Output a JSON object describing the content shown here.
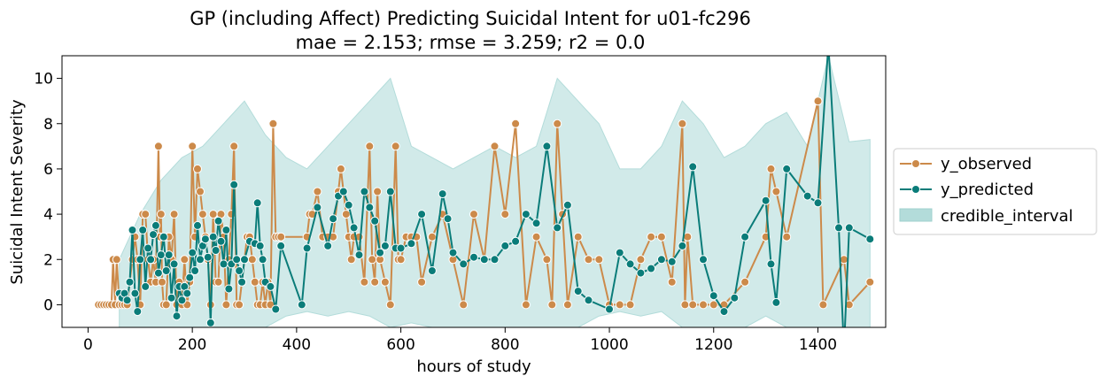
{
  "chart_data": {
    "type": "line",
    "title": "GP (including Affect) Predicting Suicidal Intent for u01-fc296",
    "subtitle": "mae = 2.153; rmse = 3.259; r2 = 0.0",
    "xlabel": "hours of study",
    "ylabel": "Suicidal Intent Severity",
    "xlim": [
      -50,
      1530
    ],
    "ylim": [
      -1,
      11
    ],
    "xticks": [
      0,
      200,
      400,
      600,
      800,
      1000,
      1200,
      1400
    ],
    "yticks": [
      0,
      2,
      4,
      6,
      8,
      10
    ],
    "legend_position": "right",
    "grid": false,
    "series": [
      {
        "name": "y_observed",
        "color": "#cc8a4a",
        "marker": "circle",
        "x": [
          20,
          25,
          30,
          35,
          40,
          45,
          48,
          52,
          55,
          60,
          65,
          70,
          75,
          80,
          85,
          90,
          95,
          100,
          105,
          110,
          115,
          120,
          125,
          130,
          135,
          138,
          140,
          142,
          145,
          150,
          155,
          160,
          165,
          170,
          175,
          180,
          185,
          190,
          195,
          200,
          205,
          210,
          215,
          220,
          225,
          230,
          235,
          240,
          245,
          250,
          255,
          260,
          265,
          270,
          275,
          280,
          285,
          290,
          295,
          300,
          305,
          310,
          315,
          320,
          325,
          330,
          335,
          340,
          345,
          350,
          355,
          360,
          365,
          370,
          420,
          425,
          430,
          440,
          450,
          460,
          470,
          480,
          485,
          490,
          495,
          500,
          505,
          510,
          520,
          530,
          540,
          545,
          550,
          555,
          560,
          570,
          580,
          590,
          595,
          600,
          610,
          620,
          630,
          640,
          660,
          680,
          700,
          720,
          740,
          760,
          780,
          800,
          820,
          840,
          860,
          880,
          890,
          900,
          910,
          920,
          940,
          960,
          980,
          1000,
          1020,
          1040,
          1060,
          1080,
          1100,
          1120,
          1140,
          1145,
          1150,
          1160,
          1180,
          1200,
          1220,
          1260,
          1300,
          1310,
          1320,
          1340,
          1400,
          1410,
          1450,
          1460,
          1500
        ],
        "values": [
          0,
          0,
          0,
          0,
          0,
          0,
          2,
          0,
          2,
          0,
          0,
          0,
          0,
          1,
          2,
          3,
          2,
          0,
          4,
          4,
          2,
          1,
          2,
          1,
          7,
          3,
          4,
          1,
          0,
          0,
          3,
          2,
          4,
          0,
          1,
          0,
          2,
          0,
          1,
          7,
          3,
          6,
          5,
          4,
          3,
          2,
          0,
          4,
          1,
          1,
          4,
          3,
          0,
          2,
          4,
          7,
          0,
          0,
          1,
          2,
          3,
          3,
          2,
          1,
          0,
          0,
          1,
          0,
          1,
          0,
          8,
          3,
          3,
          3,
          3,
          4,
          4,
          5,
          3,
          3,
          3,
          5,
          6,
          5,
          4,
          3,
          2,
          3,
          3,
          1,
          7,
          2,
          1,
          5,
          2,
          1,
          0,
          7,
          2,
          2,
          3,
          3,
          3,
          1,
          3,
          4,
          2,
          0,
          4,
          2,
          7,
          4,
          8,
          0,
          3,
          2,
          0,
          8,
          4,
          0,
          3,
          2,
          2,
          0,
          0,
          0,
          2,
          3,
          3,
          1,
          8,
          0,
          3,
          0,
          0,
          0,
          0,
          1,
          3,
          6,
          5,
          3,
          9,
          0,
          2,
          0,
          1
        ]
      },
      {
        "name": "y_predicted",
        "color": "#0a7c79",
        "marker": "circle",
        "x": [
          60,
          65,
          70,
          75,
          80,
          85,
          90,
          95,
          100,
          105,
          110,
          115,
          120,
          125,
          130,
          135,
          140,
          145,
          150,
          155,
          160,
          165,
          170,
          175,
          180,
          185,
          190,
          195,
          200,
          205,
          210,
          215,
          220,
          225,
          230,
          235,
          240,
          245,
          250,
          255,
          260,
          265,
          270,
          275,
          280,
          285,
          290,
          295,
          300,
          310,
          320,
          325,
          330,
          335,
          340,
          350,
          360,
          370,
          410,
          420,
          440,
          460,
          470,
          480,
          490,
          500,
          510,
          520,
          530,
          540,
          550,
          560,
          570,
          580,
          590,
          600,
          620,
          640,
          660,
          680,
          690,
          700,
          720,
          740,
          760,
          780,
          800,
          820,
          840,
          860,
          880,
          900,
          920,
          940,
          960,
          1000,
          1020,
          1040,
          1060,
          1080,
          1100,
          1120,
          1140,
          1160,
          1180,
          1200,
          1220,
          1240,
          1260,
          1300,
          1310,
          1320,
          1340,
          1380,
          1400,
          1420,
          1440,
          1450,
          1460,
          1500
        ],
        "values": [
          0.5,
          0.3,
          0.5,
          0.2,
          1.0,
          3.3,
          0.5,
          -0.3,
          2.0,
          3.3,
          0.8,
          2.5,
          2.0,
          3.1,
          3.5,
          1.4,
          2.2,
          3.0,
          1.5,
          2.2,
          0.3,
          1.8,
          -0.5,
          0.8,
          0.2,
          0.8,
          0.5,
          1.2,
          2.3,
          1.5,
          3.5,
          2.0,
          2.6,
          2.9,
          2.1,
          -0.8,
          3.0,
          2.4,
          3.7,
          2.8,
          1.8,
          3.3,
          0.7,
          1.8,
          5.3,
          2.0,
          1.5,
          1.0,
          2.0,
          2.8,
          2.7,
          4.5,
          2.6,
          2.0,
          1.0,
          0.8,
          -0.2,
          2.6,
          0.0,
          2.5,
          4.3,
          2.6,
          3.8,
          4.8,
          5.0,
          4.4,
          3.4,
          2.2,
          5.0,
          4.3,
          3.7,
          2.3,
          2.6,
          5.0,
          2.5,
          2.5,
          2.7,
          4.0,
          1.5,
          4.9,
          3.8,
          2.3,
          1.8,
          2.1,
          2.0,
          2.0,
          2.6,
          2.8,
          4.0,
          3.6,
          7.0,
          3.4,
          4.4,
          0.6,
          0.2,
          -0.2,
          2.3,
          1.8,
          1.4,
          1.6,
          2.0,
          1.9,
          2.6,
          6.1,
          2.0,
          0.4,
          -0.3,
          0.3,
          3.0,
          4.6,
          1.8,
          0.1,
          6.0,
          4.8,
          4.5,
          11.5,
          3.4,
          -2.0,
          3.4,
          2.9
        ]
      }
    ],
    "credible_interval": {
      "name": "credible_interval",
      "color": "#b3dcda",
      "x": [
        60,
        100,
        140,
        180,
        220,
        260,
        300,
        340,
        380,
        420,
        460,
        500,
        540,
        580,
        620,
        660,
        700,
        740,
        780,
        820,
        860,
        900,
        940,
        980,
        1020,
        1060,
        1100,
        1140,
        1180,
        1220,
        1260,
        1300,
        1340,
        1380,
        1420,
        1460,
        1500
      ],
      "lower": [
        -1.0,
        -1.0,
        -1.0,
        -1.0,
        -1.0,
        -1.0,
        -1.0,
        -1.0,
        -0.5,
        -0.3,
        -0.5,
        -0.3,
        -0.5,
        -1.0,
        -0.8,
        -1.0,
        -1.0,
        -1.0,
        -1.0,
        -1.0,
        -1.0,
        -1.0,
        -1.0,
        -0.5,
        -0.3,
        -0.5,
        -0.3,
        -1.0,
        -1.0,
        -1.0,
        -1.0,
        -0.5,
        -1.0,
        -1.0,
        -1.0,
        -1.0,
        -1.0
      ],
      "upper": [
        2.0,
        4.0,
        5.5,
        6.5,
        7.0,
        8.0,
        9.0,
        7.5,
        6.5,
        6.0,
        7.0,
        8.0,
        9.0,
        10.0,
        7.0,
        6.5,
        6.0,
        6.5,
        7.0,
        6.5,
        7.0,
        10.0,
        9.0,
        8.0,
        6.0,
        6.0,
        7.0,
        9.0,
        8.0,
        6.5,
        7.0,
        8.0,
        8.5,
        7.0,
        11.0,
        7.2,
        7.3
      ]
    }
  }
}
